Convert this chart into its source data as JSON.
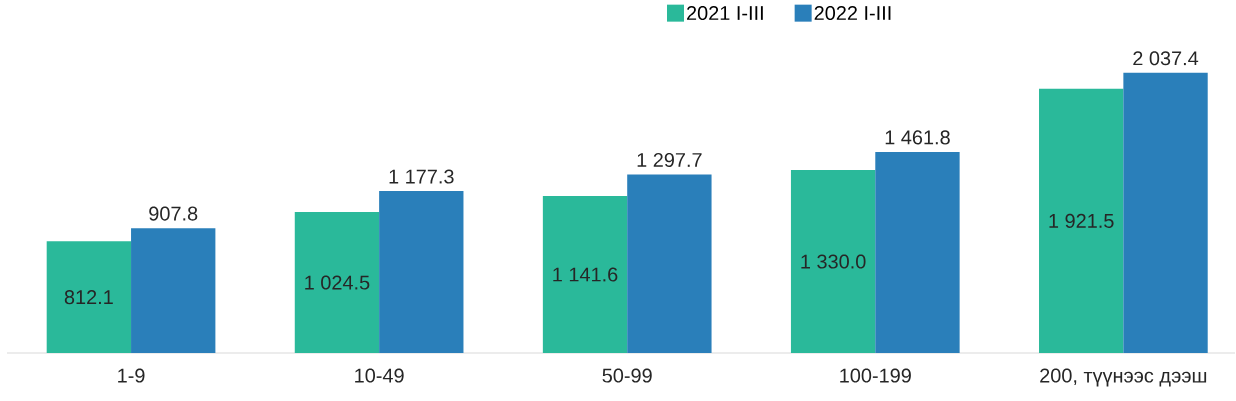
{
  "chart_data": {
    "type": "bar",
    "categories": [
      "1-9",
      "10-49",
      "50-99",
      "100-199",
      "200, түүнээс дээш"
    ],
    "series": [
      {
        "name": "2021 I-III",
        "color": "#2ab99a",
        "values": [
          812.1,
          1024.5,
          1141.6,
          1330.0,
          1921.5
        ],
        "value_labels": [
          "812.1",
          "1 024.5",
          "1 141.6",
          "1 330.0",
          "1 921.5"
        ]
      },
      {
        "name": "2022 I-III",
        "color": "#2a7fba",
        "values": [
          907.8,
          1177.3,
          1297.7,
          1461.8,
          2037.4
        ],
        "value_labels": [
          "907.8",
          "1 177.3",
          "1 297.7",
          "1 461.8",
          "2 037.4"
        ]
      }
    ],
    "legend": "top"
  }
}
